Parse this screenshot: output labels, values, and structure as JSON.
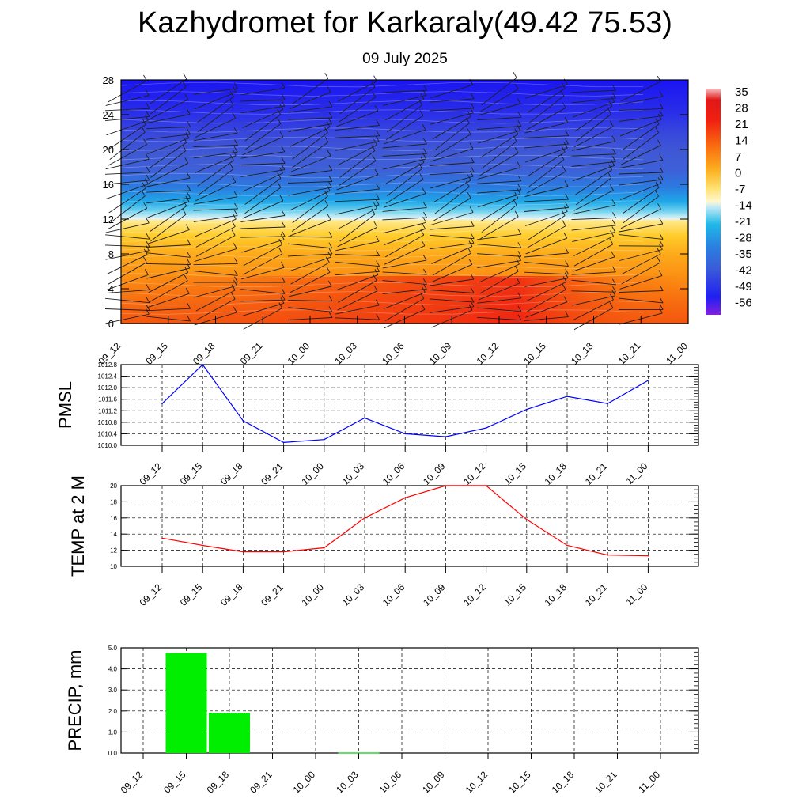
{
  "header": {
    "title": "Kazhydromet for Karkaraly(49.42 75.53)",
    "date": "09 July 2025"
  },
  "colors": {
    "pmsl_line": "#0000ff",
    "temp_line": "#ff0000",
    "precip_bar": "#00ee00",
    "grid": "#000000"
  },
  "chart_data": [
    {
      "type": "heatmap",
      "name": "vertical-cross-section",
      "xlabel": "",
      "ylabel": "",
      "categories": [
        "09_12",
        "09_15",
        "09_18",
        "09_21",
        "10_00",
        "10_03",
        "10_06",
        "10_09",
        "10_12",
        "10_15",
        "10_18",
        "10_21",
        "11_00"
      ],
      "y_ticks": [
        "0",
        "4",
        "8",
        "12",
        "16",
        "20",
        "24",
        "28"
      ],
      "ylim": [
        0,
        28
      ],
      "colorbar": {
        "labels": [
          "35",
          "28",
          "21",
          "14",
          "7",
          "0",
          "-7",
          "-14",
          "-21",
          "-28",
          "-35",
          "-42",
          "-49",
          "-56"
        ],
        "levels": [
          35,
          28,
          21,
          14,
          7,
          0,
          -7,
          -14,
          -21,
          -28,
          -35,
          -42,
          -49,
          -56
        ]
      },
      "field": "temperature with wind barbs",
      "notes": "warm layer (orange/red) below 12, cold layer (cyan to blue) above 12; warmest near surface around 10_09–10_12"
    },
    {
      "type": "line",
      "name": "pmsl",
      "ylabel": "PMSL",
      "categories": [
        "09_12",
        "09_15",
        "09_18",
        "09_21",
        "10_00",
        "10_03",
        "10_06",
        "10_09",
        "10_12",
        "10_15",
        "10_18",
        "10_21",
        "11_00"
      ],
      "y_ticks": [
        "1010.0",
        "1010.4",
        "1010.8",
        "1011.2",
        "1011.6",
        "1012.0",
        "1012.4",
        "1012.8"
      ],
      "ylim": [
        1010.0,
        1012.8
      ],
      "series": [
        {
          "values": [
            1011.45,
            1012.8,
            1010.85,
            1010.1,
            1010.2,
            1010.95,
            1010.4,
            1010.3,
            1010.6,
            1011.25,
            1011.7,
            1011.45,
            1012.25
          ]
        }
      ],
      "grid": true
    },
    {
      "type": "line",
      "name": "temp-2m",
      "ylabel": "TEMP at 2 M",
      "categories": [
        "09_12",
        "09_15",
        "09_18",
        "09_21",
        "10_00",
        "10_03",
        "10_06",
        "10_09",
        "10_12",
        "10_15",
        "10_18",
        "10_21",
        "11_00"
      ],
      "y_ticks": [
        "10",
        "12",
        "14",
        "16",
        "18",
        "20"
      ],
      "ylim": [
        10,
        20
      ],
      "series": [
        {
          "values": [
            13.5,
            12.6,
            11.8,
            11.8,
            12.3,
            16.0,
            18.5,
            20.0,
            20.0,
            15.8,
            12.6,
            11.4,
            11.3
          ]
        }
      ],
      "grid": true
    },
    {
      "type": "bar",
      "name": "precip",
      "ylabel": "PRECIP, mm",
      "categories": [
        "09_12",
        "09_15",
        "09_18",
        "09_21",
        "10_00",
        "10_03",
        "10_06",
        "10_09",
        "10_12",
        "10_15",
        "10_18",
        "10_21",
        "11_00"
      ],
      "y_ticks": [
        "0.0",
        "1.0",
        "2.0",
        "3.0",
        "4.0",
        "5.0"
      ],
      "ylim": [
        0,
        5
      ],
      "values": [
        0,
        4.75,
        1.9,
        0,
        0,
        0.02,
        0,
        0,
        0,
        0,
        0,
        0,
        0
      ],
      "grid": true
    }
  ]
}
